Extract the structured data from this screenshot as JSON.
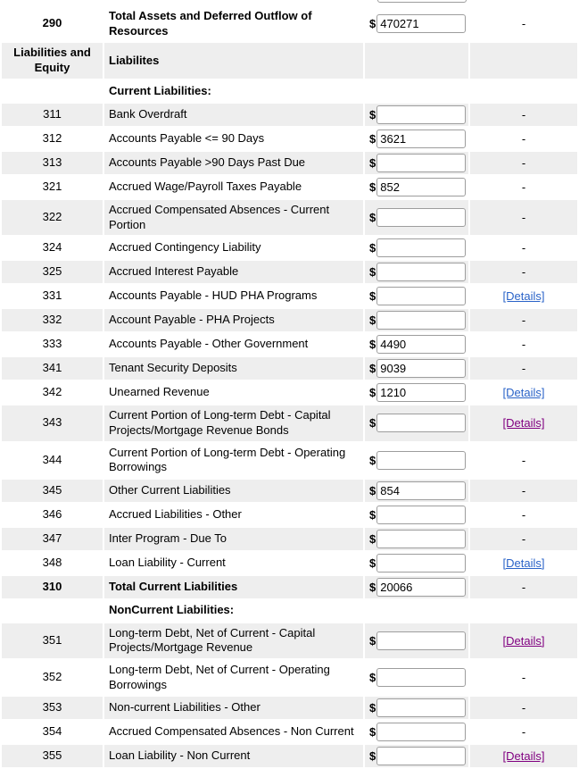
{
  "currency_symbol": "$",
  "details_link_label": "[Details]",
  "dash": "-",
  "colors": {
    "row_shade": "#eeeeee",
    "link_blue": "#2a63c8",
    "link_visited_purple": "#800080"
  },
  "rows": [
    {
      "line": "290",
      "label": "Total Assets and Deferred Outflow of Resources",
      "bold": true,
      "input": true,
      "value": "470271",
      "details": "dash",
      "shaded": false
    },
    {
      "line": "Liabilities and Equity",
      "label": "Liabilites",
      "bold": true,
      "input": false,
      "value": "",
      "details": "none",
      "shaded": true
    },
    {
      "line": "",
      "label": "Current Liabilities:",
      "bold": true,
      "input": false,
      "value": "",
      "details": "none",
      "shaded": false
    },
    {
      "line": "311",
      "label": "Bank Overdraft",
      "bold": false,
      "input": true,
      "value": "",
      "details": "dash",
      "shaded": true
    },
    {
      "line": "312",
      "label": "Accounts Payable <= 90 Days",
      "bold": false,
      "input": true,
      "value": "3621",
      "details": "dash",
      "shaded": false
    },
    {
      "line": "313",
      "label": "Accounts Payable >90 Days Past Due",
      "bold": false,
      "input": true,
      "value": "",
      "details": "dash",
      "shaded": true
    },
    {
      "line": "321",
      "label": "Accrued Wage/Payroll Taxes Payable",
      "bold": false,
      "input": true,
      "value": "852",
      "details": "dash",
      "shaded": false
    },
    {
      "line": "322",
      "label": "Accrued Compensated Absences - Current Portion",
      "bold": false,
      "input": true,
      "value": "",
      "details": "dash",
      "shaded": true
    },
    {
      "line": "324",
      "label": "Accrued Contingency Liability",
      "bold": false,
      "input": true,
      "value": "",
      "details": "dash",
      "shaded": false
    },
    {
      "line": "325",
      "label": "Accrued Interest Payable",
      "bold": false,
      "input": true,
      "value": "",
      "details": "dash",
      "shaded": true
    },
    {
      "line": "331",
      "label": "Accounts Payable - HUD PHA Programs",
      "bold": false,
      "input": true,
      "value": "",
      "details": "link",
      "shaded": false
    },
    {
      "line": "332",
      "label": "Account Payable - PHA Projects",
      "bold": false,
      "input": true,
      "value": "",
      "details": "dash",
      "shaded": true
    },
    {
      "line": "333",
      "label": "Accounts Payable - Other Government",
      "bold": false,
      "input": true,
      "value": "4490",
      "details": "dash",
      "shaded": false
    },
    {
      "line": "341",
      "label": "Tenant Security Deposits",
      "bold": false,
      "input": true,
      "value": "9039",
      "details": "dash",
      "shaded": true
    },
    {
      "line": "342",
      "label": "Unearned Revenue",
      "bold": false,
      "input": true,
      "value": "1210",
      "details": "link",
      "shaded": false
    },
    {
      "line": "343",
      "label": "Current Portion of Long-term Debt - Capital Projects/Mortgage Revenue Bonds",
      "bold": false,
      "input": true,
      "value": "",
      "details": "visited",
      "shaded": true
    },
    {
      "line": "344",
      "label": "Current Portion of Long-term Debt - Operating Borrowings",
      "bold": false,
      "input": true,
      "value": "",
      "details": "dash",
      "shaded": false
    },
    {
      "line": "345",
      "label": "Other Current Liabilities",
      "bold": false,
      "input": true,
      "value": "854",
      "details": "dash",
      "shaded": true
    },
    {
      "line": "346",
      "label": "Accrued Liabilities - Other",
      "bold": false,
      "input": true,
      "value": "",
      "details": "dash",
      "shaded": false
    },
    {
      "line": "347",
      "label": "Inter Program - Due To",
      "bold": false,
      "input": true,
      "value": "",
      "details": "dash",
      "shaded": true
    },
    {
      "line": "348",
      "label": "Loan Liability - Current",
      "bold": false,
      "input": true,
      "value": "",
      "details": "link",
      "shaded": false
    },
    {
      "line": "310",
      "label": "Total Current Liabilities",
      "bold": true,
      "input": true,
      "value": "20066",
      "details": "dash",
      "shaded": true
    },
    {
      "line": "",
      "label": "NonCurrent Liabilities:",
      "bold": true,
      "input": false,
      "value": "",
      "details": "none",
      "shaded": false
    },
    {
      "line": "351",
      "label": "Long-term Debt, Net of Current - Capital Projects/Mortgage Revenue",
      "bold": false,
      "input": true,
      "value": "",
      "details": "visited",
      "shaded": true
    },
    {
      "line": "352",
      "label": "Long-term Debt, Net of Current - Operating Borrowings",
      "bold": false,
      "input": true,
      "value": "",
      "details": "dash",
      "shaded": false
    },
    {
      "line": "353",
      "label": "Non-current Liabilities - Other",
      "bold": false,
      "input": true,
      "value": "",
      "details": "dash",
      "shaded": true
    },
    {
      "line": "354",
      "label": "Accrued Compensated Absences - Non Current",
      "bold": false,
      "input": true,
      "value": "",
      "details": "dash",
      "shaded": false
    },
    {
      "line": "355",
      "label": "Loan Liability - Non Current",
      "bold": false,
      "input": true,
      "value": "",
      "details": "visited",
      "shaded": true
    }
  ]
}
